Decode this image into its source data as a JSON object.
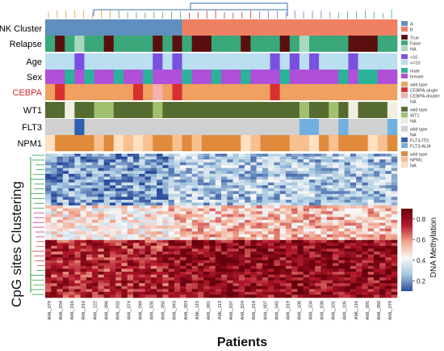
{
  "chart_data": {
    "type": "heatmap",
    "annotation_tracks": [
      {
        "label": "NK Cluster",
        "label_color": "#000000"
      },
      {
        "label": "Relapse",
        "label_color": "#000000"
      },
      {
        "label": "Age",
        "label_color": "#000000"
      },
      {
        "label": "Sex",
        "label_color": "#000000"
      },
      {
        "label": "CEBPA",
        "label_color": "#d62728"
      },
      {
        "label": "WT1",
        "label_color": "#000000"
      },
      {
        "label": "FLT3",
        "label_color": "#000000"
      },
      {
        "label": "NPM1",
        "label_color": "#000000"
      }
    ],
    "legend_groups": [
      {
        "track": "NK Cluster",
        "entries": [
          {
            "label": "A",
            "color": "#5f8fbf"
          },
          {
            "label": "B",
            "color": "#f08062"
          }
        ]
      },
      {
        "track": "Relapse",
        "entries": [
          {
            "label": "True",
            "color": "#5a0f0f"
          },
          {
            "label": "False",
            "color": "#3aa87a"
          },
          {
            "label": "NA",
            "color": "#a8d8c0"
          }
        ]
      },
      {
        "track": "Age",
        "entries": [
          {
            "label": ">10",
            "color": "#7b4fe0"
          },
          {
            "label": "<=10",
            "color": "#b9dff0"
          }
        ]
      },
      {
        "track": "Sex",
        "entries": [
          {
            "label": "male",
            "color": "#2bb39a"
          },
          {
            "label": "female",
            "color": "#b050d8"
          }
        ]
      },
      {
        "track": "CEBPA",
        "entries": [
          {
            "label": "wild type",
            "color": "#f0a060"
          },
          {
            "label": "CEBPA-single",
            "color": "#d83030"
          },
          {
            "label": "CEBPA-double",
            "color": "#f7b0b0"
          },
          {
            "label": "NA",
            "color": "#ffffff"
          }
        ]
      },
      {
        "track": "WT1",
        "entries": [
          {
            "label": "wild type",
            "color": "#556b2f"
          },
          {
            "label": "WT1",
            "color": "#a0c070"
          },
          {
            "label": "NA",
            "color": "#f0f0e0"
          }
        ]
      },
      {
        "track": "FLT3",
        "entries": [
          {
            "label": "wild type",
            "color": "#d0d0d0"
          },
          {
            "label": "NA",
            "color": "#ffffff"
          },
          {
            "label": "FLT3-ITD",
            "color": "#3060b0"
          },
          {
            "label": "FLT3-ALM",
            "color": "#70b0e0"
          }
        ]
      },
      {
        "track": "NPM1",
        "entries": [
          {
            "label": "wild type",
            "color": "#e08a3c"
          },
          {
            "label": "NPM1",
            "color": "#f8c090"
          },
          {
            "label": "NA",
            "color": "#ffe0c0"
          }
        ]
      }
    ],
    "x_tick_labels": [
      "AML_079",
      "AML_034",
      "AML_016",
      "AML_010",
      "AML_122",
      "AML_086",
      "AML_032",
      "AML_074",
      "AML_049",
      "AML_035",
      "AML_050",
      "AML_043",
      "AML_093",
      "AML_115",
      "AML_091",
      "AML_113",
      "AML_037",
      "AML_024",
      "AML_018",
      "AML_007",
      "AML_045",
      "AML_019",
      "AML_108",
      "AML_104",
      "AML_038",
      "AML_101",
      "AML_105",
      "AML_116",
      "AML_095",
      "AML_060",
      "AML_079"
    ],
    "xlabel": "Patients",
    "ylabel": "CpG sites Clustering",
    "colorbar": {
      "label": "DNA Methylation",
      "ticks": [
        0.8,
        0.6,
        0.4,
        0.2
      ],
      "range": [
        0.1,
        0.9
      ],
      "colors": [
        "#2b4c9b",
        "#a6c8e0",
        "#f7f7f7",
        "#f2a58c",
        "#b2182b",
        "#67000d"
      ]
    },
    "grid": false
  }
}
